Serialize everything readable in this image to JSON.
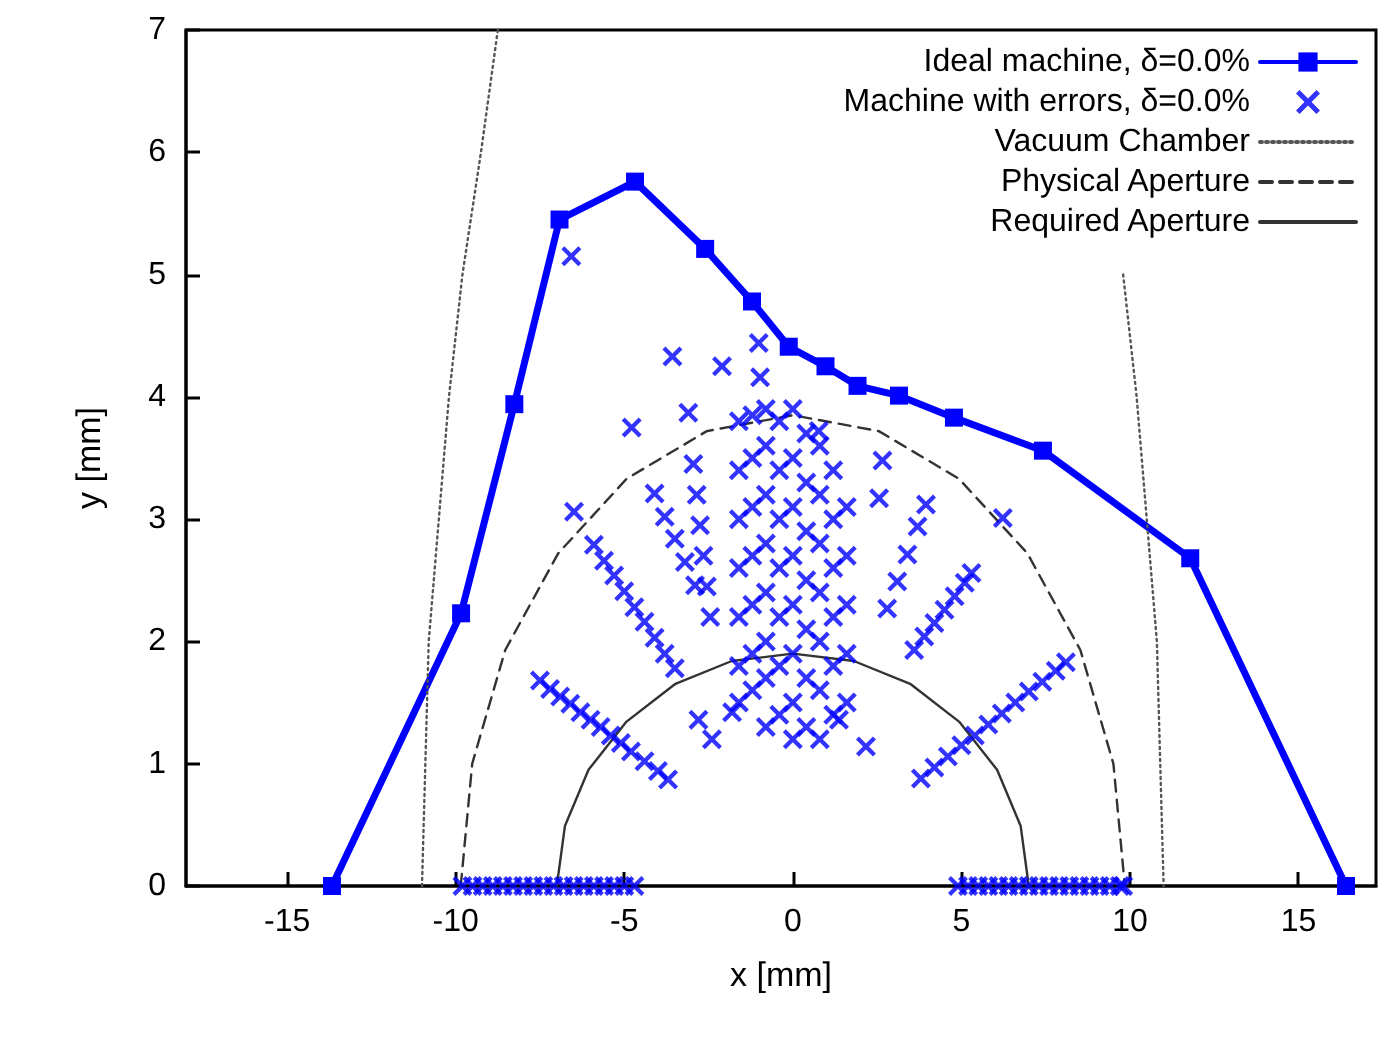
{
  "chart_data": {
    "type": "line",
    "xlabel": "x [mm]",
    "ylabel": "y [mm]",
    "xlim": [
      -18,
      17.3
    ],
    "xticks": [
      -15,
      -10,
      -5,
      0,
      5,
      10,
      15
    ],
    "ylim": [
      0,
      7
    ],
    "yticks": [
      0,
      1,
      2,
      3,
      4,
      5,
      6,
      7
    ],
    "legend": "top right",
    "series": [
      {
        "name": "Ideal machine, δ=0.0%",
        "color": "#0000ff",
        "marker": "square",
        "line_style": "solid",
        "x": [
          -13.67,
          -9.84,
          -8.26,
          -6.92,
          -4.68,
          -2.6,
          -1.21,
          -0.12,
          0.97,
          1.92,
          3.15,
          4.78,
          7.42,
          11.79,
          16.41
        ],
        "values": [
          0,
          2.23,
          3.94,
          5.45,
          5.76,
          5.21,
          4.78,
          4.41,
          4.25,
          4.09,
          4.01,
          3.83,
          3.56,
          2.68,
          0
        ]
      },
      {
        "name": "Machine with errors, δ=0.0%",
        "type": "scatter",
        "color": "#0000ff",
        "marker": "cross",
        "x": [
          -9.8,
          -9.5,
          -9.2,
          -8.9,
          -8.6,
          -8.3,
          -8.0,
          -7.7,
          -7.4,
          -7.1,
          -6.8,
          -6.5,
          -6.2,
          -5.9,
          -5.6,
          -5.3,
          -5.0,
          -4.7,
          4.9,
          5.2,
          5.5,
          5.8,
          6.1,
          6.4,
          6.7,
          7.0,
          7.3,
          7.6,
          7.9,
          8.2,
          8.5,
          8.8,
          9.1,
          9.4,
          9.7,
          9.8,
          -7.5,
          -7.2,
          -6.9,
          -6.6,
          -6.3,
          -6.0,
          -5.7,
          -5.4,
          -5.1,
          -4.8,
          -4.4,
          -4.0,
          -3.7,
          -5.9,
          -5.6,
          -5.3,
          -5.0,
          -4.7,
          -4.4,
          -4.1,
          -3.8,
          -3.5,
          -4.1,
          -3.8,
          -3.5,
          -3.2,
          -2.9,
          -2.95,
          -2.85,
          -2.75,
          -2.65,
          -2.55,
          -2.45,
          -3.57,
          -2.1,
          -1.01,
          -0.97,
          -4.78,
          -3.1,
          -6.49,
          -2.8,
          -2.4,
          -1.8,
          -6.57,
          -1.6,
          -1.6,
          -1.6,
          -1.6,
          -1.6,
          -1.6,
          -1.6,
          -1.2,
          -1.2,
          -1.2,
          -1.2,
          -1.2,
          -1.2,
          -1.2,
          -0.8,
          -0.8,
          -0.8,
          -0.8,
          -0.8,
          -0.8,
          -0.8,
          -0.8,
          -0.4,
          -0.4,
          -0.4,
          -0.4,
          -0.4,
          -0.4,
          -0.4,
          0,
          0,
          0,
          0,
          0,
          0,
          0,
          0,
          0.4,
          0.4,
          0.4,
          0.4,
          0.4,
          0.4,
          0.4,
          0.8,
          0.8,
          0.8,
          0.8,
          0.8,
          0.8,
          0.8,
          1.2,
          1.2,
          1.2,
          1.2,
          1.2,
          1.2,
          1.6,
          1.6,
          1.6,
          1.6,
          1.6,
          3.8,
          4.2,
          4.6,
          5.0,
          5.4,
          5.8,
          6.2,
          6.6,
          7.0,
          7.4,
          7.8,
          8.1,
          3.6,
          3.9,
          4.2,
          4.5,
          4.8,
          5.1,
          5.3,
          2.8,
          3.1,
          3.4,
          3.7,
          3.95,
          6.23,
          2.66,
          2.56,
          0.77,
          2.17,
          1.37
        ],
        "values": [
          0,
          0,
          0,
          0,
          0,
          0,
          0,
          0,
          0,
          0,
          0,
          0,
          0,
          0,
          0,
          0,
          0,
          0,
          0,
          0,
          0,
          0,
          0,
          0,
          0,
          0,
          0,
          0,
          0,
          0,
          0,
          0,
          0,
          0,
          0,
          0,
          1.68,
          1.61,
          1.55,
          1.49,
          1.42,
          1.36,
          1.3,
          1.23,
          1.17,
          1.1,
          1.02,
          0.94,
          0.87,
          2.79,
          2.66,
          2.54,
          2.41,
          2.28,
          2.16,
          2.03,
          1.9,
          1.78,
          3.21,
          3.02,
          2.84,
          2.65,
          2.46,
          3.45,
          3.2,
          2.95,
          2.7,
          2.45,
          2.2,
          4.33,
          4.25,
          4.44,
          4.16,
          3.75,
          3.87,
          3.06,
          1.36,
          1.2,
          1.42,
          5.15,
          3.8,
          3.4,
          3.0,
          2.6,
          2.2,
          1.8,
          1.5,
          3.85,
          3.5,
          3.1,
          2.7,
          2.3,
          1.9,
          1.6,
          3.9,
          3.6,
          3.2,
          2.8,
          2.4,
          2.0,
          1.7,
          1.3,
          3.8,
          3.4,
          3.0,
          2.6,
          2.2,
          1.8,
          1.4,
          3.9,
          3.5,
          3.1,
          2.7,
          2.3,
          1.9,
          1.5,
          1.2,
          3.7,
          3.3,
          2.9,
          2.5,
          2.1,
          1.7,
          1.3,
          3.6,
          3.2,
          2.8,
          2.4,
          2.0,
          1.6,
          1.2,
          3.4,
          3.0,
          2.6,
          2.2,
          1.8,
          1.4,
          3.1,
          2.7,
          2.3,
          1.9,
          1.5,
          0.88,
          0.97,
          1.06,
          1.15,
          1.23,
          1.32,
          1.41,
          1.5,
          1.59,
          1.67,
          1.76,
          1.83,
          1.93,
          2.04,
          2.15,
          2.26,
          2.37,
          2.48,
          2.56,
          2.27,
          2.49,
          2.71,
          2.94,
          3.12,
          3.01,
          3.48,
          3.17,
          3.72,
          1.14,
          1.36
        ]
      },
      {
        "name": "Vacuum Chamber",
        "color": "#555555",
        "marker": "none",
        "line_style": "dotted",
        "x": [
          -11.0,
          -10.8,
          -10.2,
          -9.8,
          -9.25,
          -8.75,
          0,
          9.8,
          10.2,
          10.8,
          11.0
        ],
        "values": [
          0,
          2,
          4,
          5,
          6,
          7,
          null,
          5,
          4,
          2,
          0
        ]
      },
      {
        "name": "Physical Aperture",
        "color": "#333333",
        "marker": "none",
        "line_style": "dashed",
        "x": [
          -9.85,
          -9.51,
          -8.53,
          -6.96,
          -4.93,
          -2.55,
          0,
          2.55,
          4.93,
          6.96,
          8.53,
          9.51,
          9.85
        ],
        "values": [
          0,
          1.0,
          1.93,
          2.72,
          3.33,
          3.72,
          3.85,
          3.72,
          3.33,
          2.72,
          1.93,
          1.0,
          0
        ]
      },
      {
        "name": "Required Aperture",
        "color": "#333333",
        "marker": "none",
        "line_style": "solid",
        "x": [
          -7,
          -6.76,
          -6.06,
          -4.95,
          -3.5,
          -1.81,
          0,
          1.81,
          3.5,
          4.95,
          6.06,
          6.76,
          7
        ],
        "values": [
          0,
          0.49,
          0.95,
          1.34,
          1.65,
          1.84,
          1.9,
          1.84,
          1.65,
          1.34,
          0.95,
          0.49,
          0
        ]
      }
    ]
  }
}
